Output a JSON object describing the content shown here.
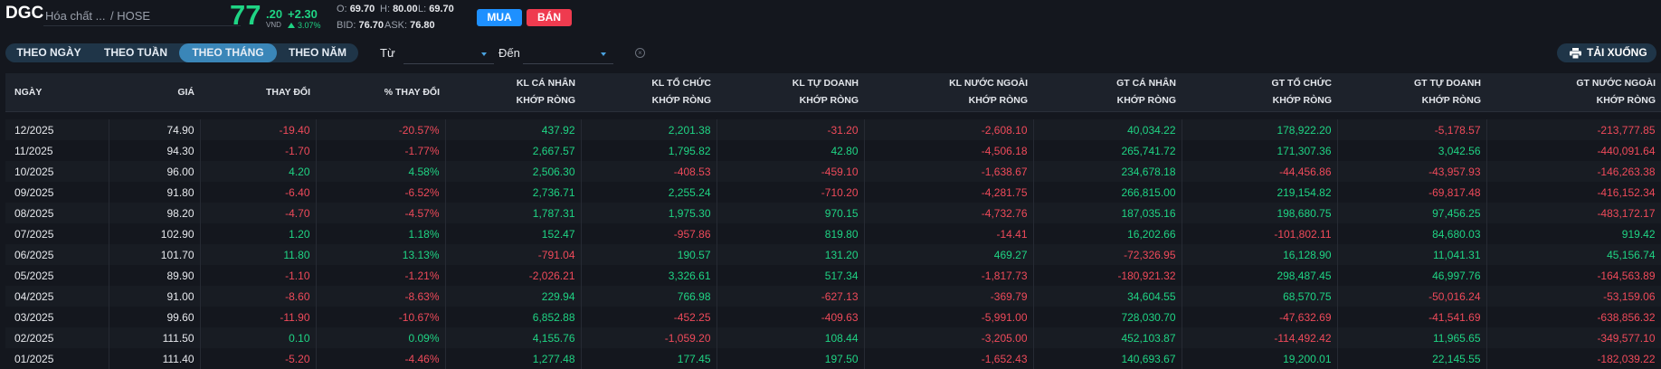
{
  "header": {
    "ticker": "DGC",
    "company": "Hóa chất ...",
    "exchange": "/ HOSE",
    "price_int": "77",
    "price_dec": ".20",
    "unit": "VND",
    "change": "+2.30",
    "change_pct": "3.07%",
    "open_label": "O:",
    "open": "69.70",
    "high_label": "H:",
    "high": "80.00",
    "low_label": "L:",
    "low": "69.70",
    "bid_label": "BID:",
    "bid": "76.70",
    "ask_label": "ASK:",
    "ask": "76.80",
    "buy_label": "MUA",
    "sell_label": "BÁN"
  },
  "filters": {
    "tabs": [
      {
        "label": "THEO NGÀY",
        "active": false
      },
      {
        "label": "THEO TUẦN",
        "active": false
      },
      {
        "label": "THEO THÁNG",
        "active": true
      },
      {
        "label": "THEO NĂM",
        "active": false
      }
    ],
    "from_label": "Từ",
    "from_value": "",
    "to_label": "Đến",
    "to_value": "",
    "download_label": "TẢI XUỐNG"
  },
  "colors": {
    "up": "#1fd484",
    "down": "#ef4a5a",
    "accent": "#3a86b8",
    "buy": "#1e90ff",
    "sell": "#ef3b4f"
  },
  "icons": {
    "caret": "chevron-down-icon",
    "clear": "clear-circle-icon",
    "download": "printer-icon"
  },
  "table": {
    "headers": [
      [
        "NGÀY",
        ""
      ],
      [
        "GIÁ",
        ""
      ],
      [
        "THAY ĐỔI",
        ""
      ],
      [
        "% THAY ĐỔI",
        ""
      ],
      [
        "KL CÁ NHÂN",
        "KHỚP RÒNG"
      ],
      [
        "KL TỔ CHỨC",
        "KHỚP RÒNG"
      ],
      [
        "KL TỰ DOANH",
        "KHỚP RÒNG"
      ],
      [
        "KL NƯỚC NGOÀI",
        "KHỚP RÒNG"
      ],
      [
        "GT CÁ NHÂN",
        "KHỚP RÒNG"
      ],
      [
        "GT TỔ CHỨC",
        "KHỚP RÒNG"
      ],
      [
        "GT TỰ DOANH",
        "KHỚP RÒNG"
      ],
      [
        "GT NƯỚC NGOÀI",
        "KHỚP RÒNG"
      ]
    ],
    "rows": [
      [
        "12/2025",
        "74.90",
        "-19.40",
        "-20.57%",
        "437.92",
        "2,201.38",
        "-31.20",
        "-2,608.10",
        "40,034.22",
        "178,922.20",
        "-5,178.57",
        "-213,777.85"
      ],
      [
        "11/2025",
        "94.30",
        "-1.70",
        "-1.77%",
        "2,667.57",
        "1,795.82",
        "42.80",
        "-4,506.18",
        "265,741.72",
        "171,307.36",
        "3,042.56",
        "-440,091.64"
      ],
      [
        "10/2025",
        "96.00",
        "4.20",
        "4.58%",
        "2,506.30",
        "-408.53",
        "-459.10",
        "-1,638.67",
        "234,678.18",
        "-44,456.86",
        "-43,957.93",
        "-146,263.38"
      ],
      [
        "09/2025",
        "91.80",
        "-6.40",
        "-6.52%",
        "2,736.71",
        "2,255.24",
        "-710.20",
        "-4,281.75",
        "266,815.00",
        "219,154.82",
        "-69,817.48",
        "-416,152.34"
      ],
      [
        "08/2025",
        "98.20",
        "-4.70",
        "-4.57%",
        "1,787.31",
        "1,975.30",
        "970.15",
        "-4,732.76",
        "187,035.16",
        "198,680.75",
        "97,456.25",
        "-483,172.17"
      ],
      [
        "07/2025",
        "102.90",
        "1.20",
        "1.18%",
        "152.47",
        "-957.86",
        "819.80",
        "-14.41",
        "16,202.66",
        "-101,802.11",
        "84,680.03",
        "919.42"
      ],
      [
        "06/2025",
        "101.70",
        "11.80",
        "13.13%",
        "-791.04",
        "190.57",
        "131.20",
        "469.27",
        "-72,326.95",
        "16,128.90",
        "11,041.31",
        "45,156.74"
      ],
      [
        "05/2025",
        "89.90",
        "-1.10",
        "-1.21%",
        "-2,026.21",
        "3,326.61",
        "517.34",
        "-1,817.73",
        "-180,921.32",
        "298,487.45",
        "46,997.76",
        "-164,563.89"
      ],
      [
        "04/2025",
        "91.00",
        "-8.60",
        "-8.63%",
        "229.94",
        "766.98",
        "-627.13",
        "-369.79",
        "34,604.55",
        "68,570.75",
        "-50,016.24",
        "-53,159.06"
      ],
      [
        "03/2025",
        "99.60",
        "-11.90",
        "-10.67%",
        "6,852.88",
        "-452.25",
        "-409.63",
        "-5,991.00",
        "728,030.70",
        "-47,632.69",
        "-41,541.69",
        "-638,856.32"
      ],
      [
        "02/2025",
        "111.50",
        "0.10",
        "0.09%",
        "4,155.76",
        "-1,059.20",
        "108.44",
        "-3,205.00",
        "452,103.87",
        "-114,492.42",
        "11,965.65",
        "-349,577.10"
      ],
      [
        "01/2025",
        "111.40",
        "-5.20",
        "-4.46%",
        "1,277.48",
        "177.45",
        "197.50",
        "-1,652.43",
        "140,693.67",
        "19,200.01",
        "22,145.55",
        "-182,039.22"
      ]
    ]
  }
}
